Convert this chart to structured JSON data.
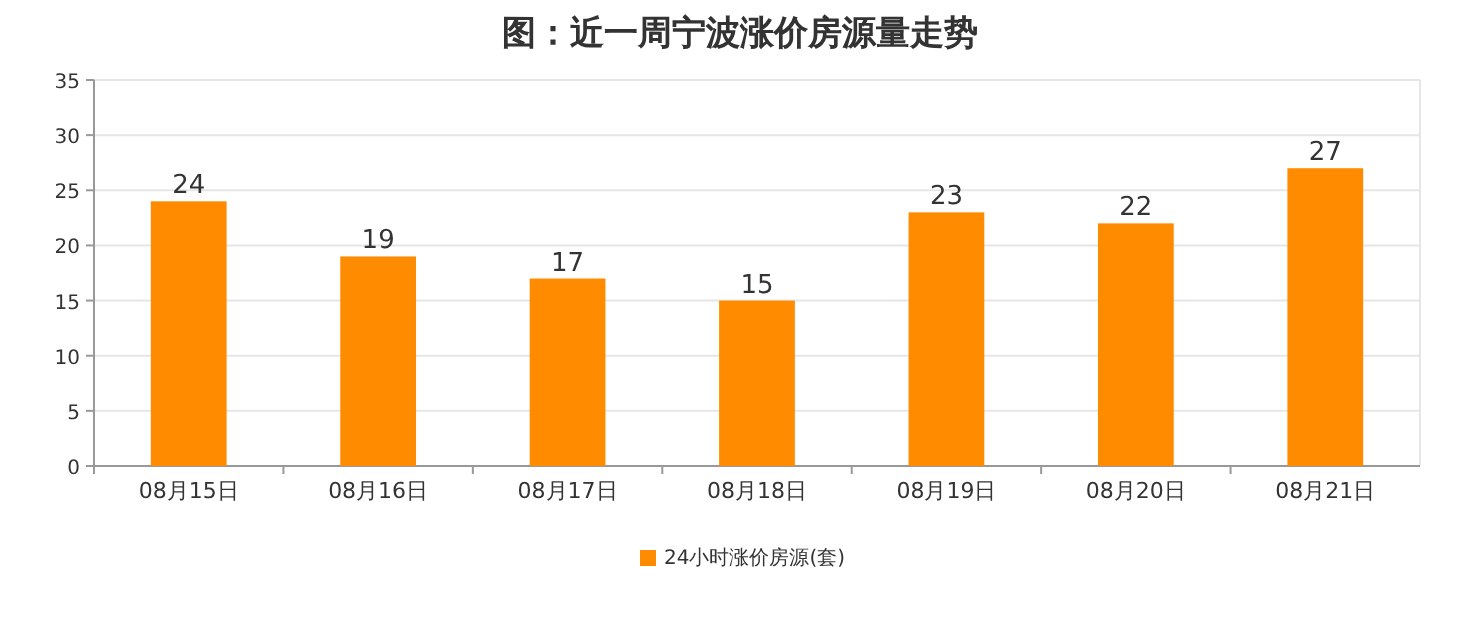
{
  "chart_data": {
    "type": "bar",
    "title": "图：近一周宁波涨价房源量走势",
    "categories": [
      "08月15日",
      "08月16日",
      "08月17日",
      "08月18日",
      "08月19日",
      "08月20日",
      "08月21日"
    ],
    "series": [
      {
        "name": "24小时涨价房源(套)",
        "color": "#ff8c00",
        "values": [
          24,
          19,
          17,
          15,
          23,
          22,
          27
        ]
      }
    ],
    "ylim": [
      0,
      35
    ],
    "yticks": [
      0,
      5,
      10,
      15,
      20,
      25,
      30,
      35
    ],
    "grid": "y",
    "legend": "bottom",
    "data_labels": true
  }
}
